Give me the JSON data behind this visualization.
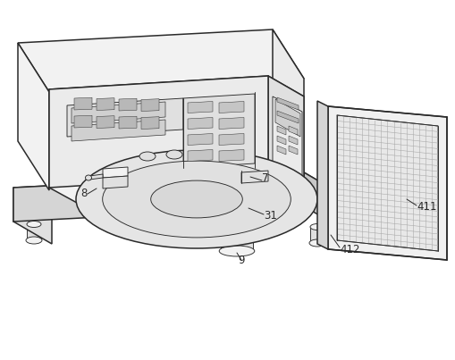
{
  "background_color": "#ffffff",
  "line_color": "#2a2a2a",
  "light_fill": "#f2f2f2",
  "medium_fill": "#e0e0e0",
  "dark_fill": "#c8c8c8",
  "shadow_fill": "#d5d5d5",
  "panel_fill": "#ebebeb",
  "mesh_fill": "#e8e8e8",
  "mesh_line": "#aaaaaa",
  "figsize": [
    5.1,
    4.03
  ],
  "dpi": 100
}
